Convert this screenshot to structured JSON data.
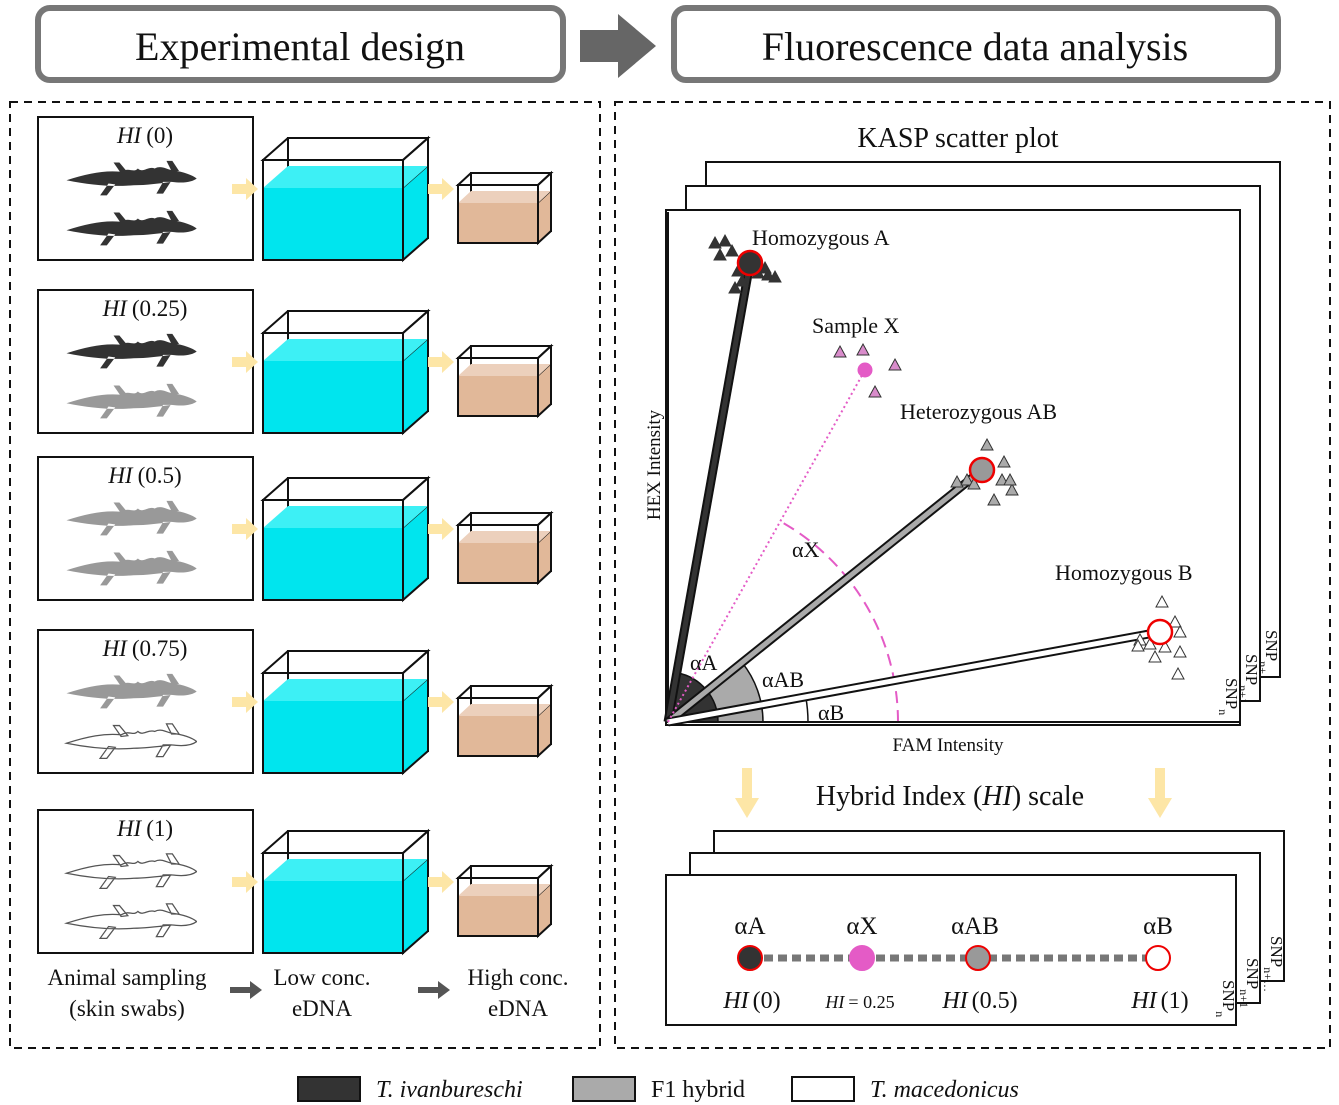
{
  "header": {
    "left_title": "Experimental design",
    "right_title": "Fluorescence data analysis"
  },
  "design": {
    "samples": [
      {
        "hi": "HI",
        "value": "(0)"
      },
      {
        "hi": "HI",
        "value": "(0.25)"
      },
      {
        "hi": "HI",
        "value": "(0.5)"
      },
      {
        "hi": "HI",
        "value": "(0.75)"
      },
      {
        "hi": "HI",
        "value": "(1)"
      }
    ],
    "steps": [
      {
        "lines": [
          "Animal sampling",
          "(skin swabs)"
        ]
      },
      {
        "lines": [
          "Low conc.",
          "eDNA"
        ]
      },
      {
        "lines": [
          "High conc.",
          "eDNA"
        ]
      }
    ]
  },
  "scatter": {
    "title": "KASP scatter plot",
    "x_axis": "FAM Intensity",
    "y_axis": "HEX Intensity",
    "clusters": [
      {
        "label": "Homozygous A",
        "angle": "αA"
      },
      {
        "label": "Sample X",
        "angle": "αX"
      },
      {
        "label": "Heterozygous AB",
        "angle": "αAB"
      },
      {
        "label": "Homozygous B",
        "angle": "αB"
      }
    ],
    "snp_layers": [
      {
        "base": "SNP",
        "sub": "n"
      },
      {
        "base": "SNP",
        "sub": "n+1"
      },
      {
        "base": "SNP",
        "sub": "n+…"
      }
    ]
  },
  "hi_scale": {
    "title": {
      "before": "Hybrid Index (",
      "hi": "HI",
      "after": ") scale"
    },
    "points": [
      {
        "angle": "αA",
        "hi": "HI",
        "value": "(0)"
      },
      {
        "angle": "αX",
        "hi": "HI",
        "value": "= 0.25"
      },
      {
        "angle": "αAB",
        "hi": "HI",
        "value": "(0.5)"
      },
      {
        "angle": "αB",
        "hi": "HI",
        "value": "(1)"
      }
    ],
    "snp_layers": [
      {
        "base": "SNP",
        "sub": "n"
      },
      {
        "base": "SNP",
        "sub": "n+1"
      },
      {
        "base": "SNP",
        "sub": "n+…"
      }
    ]
  },
  "legend": [
    {
      "label": "T. ivanbureschi"
    },
    {
      "label": "F1 hybrid"
    },
    {
      "label": "T. macedonicus"
    }
  ]
}
